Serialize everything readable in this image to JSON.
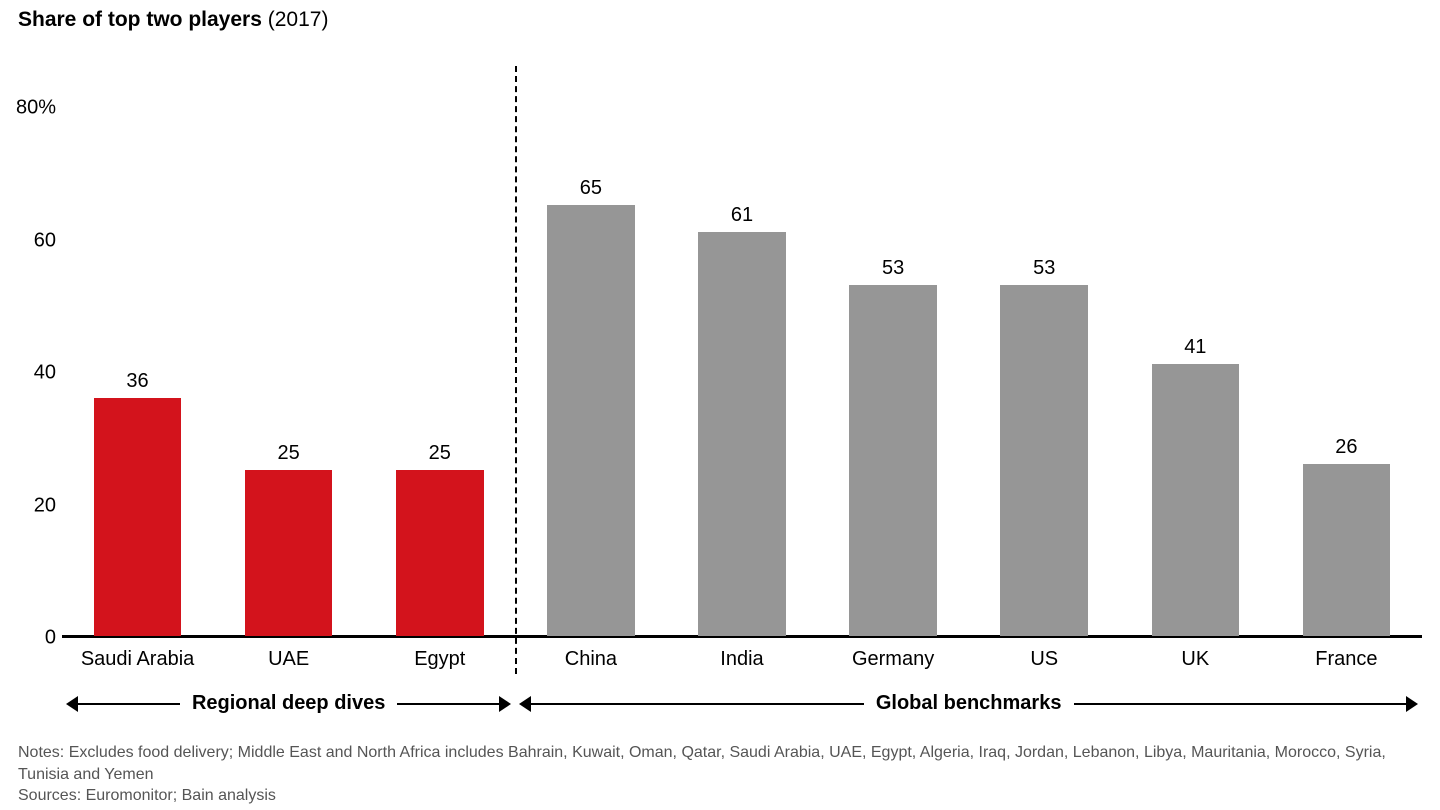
{
  "chart": {
    "type": "bar",
    "title_bold": "Share of top two players",
    "title_year": "(2017)",
    "title_fontsize": 21,
    "label_fontsize": 20,
    "value_fontsize": 20,
    "group_fontsize": 20,
    "notes_fontsize": 16,
    "background_color": "#ffffff",
    "axis_color": "#000000",
    "text_color": "#000000",
    "notes_color": "#555555",
    "ylim": [
      0,
      80
    ],
    "ytick_step": 20,
    "ytick_labels": [
      "0",
      "20",
      "40",
      "60",
      "80%"
    ],
    "bar_width_ratio": 0.58,
    "divider_after_index": 2,
    "categories": [
      "Saudi Arabia",
      "UAE",
      "Egypt",
      "China",
      "India",
      "Germany",
      "US",
      "UK",
      "France"
    ],
    "values": [
      36,
      25,
      25,
      65,
      61,
      53,
      53,
      41,
      26
    ],
    "bar_colors": [
      "#d3131c",
      "#d3131c",
      "#d3131c",
      "#969696",
      "#969696",
      "#969696",
      "#969696",
      "#969696",
      "#969696"
    ],
    "groups": [
      {
        "label": "Regional deep dives",
        "from": 0,
        "to": 2
      },
      {
        "label": "Global benchmarks",
        "from": 3,
        "to": 8
      }
    ],
    "notes_line1": "Notes: Excludes food delivery; Middle East and North Africa includes Bahrain, Kuwait, Oman, Qatar, Saudi Arabia, UAE, Egypt, Algeria, Iraq, Jordan, Lebanon, Libya, Mauritania, Morocco, Syria, Tunisia and Yemen",
    "notes_line2": "Sources: Euromonitor; Bain analysis"
  }
}
